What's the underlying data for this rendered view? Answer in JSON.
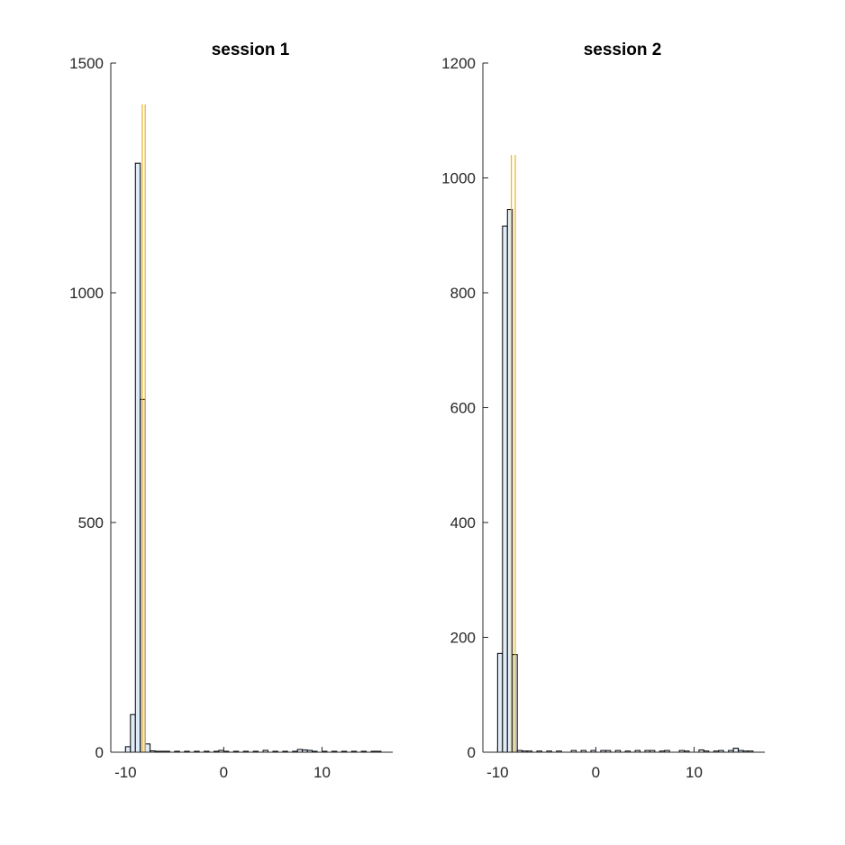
{
  "chart_data": [
    {
      "type": "bar",
      "title": "session 1",
      "xlabel": "",
      "ylabel": "",
      "xlim": [
        -11.5,
        17.2
      ],
      "ylim": [
        0,
        1500
      ],
      "xticks": [
        -10,
        0,
        10
      ],
      "xtick_labels": [
        "-10",
        "0",
        "10"
      ],
      "yticks": [
        0,
        500,
        1000,
        1500
      ],
      "ytick_labels": [
        "0",
        "500",
        "1000",
        "1500"
      ],
      "bin_width": 0.5,
      "grid": false,
      "legend": "none",
      "bar_fill": "#dfebf7",
      "bar_stroke": "#000000",
      "series": [
        {
          "values": [
            {
              "x": -10.0,
              "y": 12
            },
            {
              "x": -9.5,
              "y": 82
            },
            {
              "x": -9.0,
              "y": 1282
            },
            {
              "x": -8.5,
              "y": 768
            },
            {
              "x": -8.0,
              "y": 18
            },
            {
              "x": -7.5,
              "y": 3
            },
            {
              "x": -7.0,
              "y": 2
            },
            {
              "x": -6.5,
              "y": 2
            },
            {
              "x": -6.0,
              "y": 2
            },
            {
              "x": -5.0,
              "y": 2
            },
            {
              "x": -4.0,
              "y": 2
            },
            {
              "x": -3.0,
              "y": 2
            },
            {
              "x": -2.0,
              "y": 2
            },
            {
              "x": -1.0,
              "y": 2
            },
            {
              "x": -0.5,
              "y": 4
            },
            {
              "x": 0.0,
              "y": 2
            },
            {
              "x": 1.0,
              "y": 2
            },
            {
              "x": 2.0,
              "y": 2
            },
            {
              "x": 3.0,
              "y": 2
            },
            {
              "x": 4.0,
              "y": 4
            },
            {
              "x": 5.0,
              "y": 2
            },
            {
              "x": 6.0,
              "y": 2
            },
            {
              "x": 7.0,
              "y": 2
            },
            {
              "x": 7.5,
              "y": 6
            },
            {
              "x": 8.0,
              "y": 5
            },
            {
              "x": 8.5,
              "y": 4
            },
            {
              "x": 9.0,
              "y": 2
            },
            {
              "x": 10.0,
              "y": 2
            },
            {
              "x": 11.0,
              "y": 2
            },
            {
              "x": 12.0,
              "y": 2
            },
            {
              "x": 13.0,
              "y": 2
            },
            {
              "x": 14.0,
              "y": 2
            },
            {
              "x": 15.0,
              "y": 2
            },
            {
              "x": 15.5,
              "y": 2
            }
          ]
        }
      ],
      "reference_lines": {
        "color": "#edb120",
        "x": [
          -8.3,
          -8.0
        ],
        "y_top": 1410
      }
    },
    {
      "type": "bar",
      "title": "session 2",
      "xlabel": "",
      "ylabel": "",
      "xlim": [
        -11.5,
        17.2
      ],
      "ylim": [
        0,
        1200
      ],
      "xticks": [
        -10,
        0,
        10
      ],
      "xtick_labels": [
        "-10",
        "0",
        "10"
      ],
      "yticks": [
        0,
        200,
        400,
        600,
        800,
        1000,
        1200
      ],
      "ytick_labels": [
        "0",
        "200",
        "400",
        "600",
        "800",
        "1000",
        "1200"
      ],
      "bin_width": 0.5,
      "grid": false,
      "legend": "none",
      "bar_fill": "#dfebf7",
      "bar_stroke": "#000000",
      "series": [
        {
          "values": [
            {
              "x": -10.0,
              "y": 172
            },
            {
              "x": -9.5,
              "y": 916
            },
            {
              "x": -9.0,
              "y": 945
            },
            {
              "x": -8.5,
              "y": 170
            },
            {
              "x": -8.0,
              "y": 3
            },
            {
              "x": -7.5,
              "y": 2
            },
            {
              "x": -7.0,
              "y": 2
            },
            {
              "x": -6.0,
              "y": 2
            },
            {
              "x": -5.0,
              "y": 2
            },
            {
              "x": -4.0,
              "y": 2
            },
            {
              "x": -2.5,
              "y": 3
            },
            {
              "x": -1.5,
              "y": 3
            },
            {
              "x": -0.5,
              "y": 3
            },
            {
              "x": 0.5,
              "y": 3
            },
            {
              "x": 1.0,
              "y": 3
            },
            {
              "x": 2.0,
              "y": 3
            },
            {
              "x": 3.0,
              "y": 2
            },
            {
              "x": 4.0,
              "y": 3
            },
            {
              "x": 5.0,
              "y": 3
            },
            {
              "x": 5.5,
              "y": 3
            },
            {
              "x": 6.5,
              "y": 2
            },
            {
              "x": 7.0,
              "y": 3
            },
            {
              "x": 8.5,
              "y": 3
            },
            {
              "x": 9.0,
              "y": 2
            },
            {
              "x": 10.5,
              "y": 4
            },
            {
              "x": 11.0,
              "y": 2
            },
            {
              "x": 12.0,
              "y": 2
            },
            {
              "x": 12.5,
              "y": 3
            },
            {
              "x": 13.5,
              "y": 3
            },
            {
              "x": 14.0,
              "y": 7
            },
            {
              "x": 14.5,
              "y": 3
            },
            {
              "x": 15.0,
              "y": 2
            },
            {
              "x": 15.5,
              "y": 2
            }
          ]
        }
      ],
      "reference_lines": {
        "color": "#edb120",
        "x": [
          -8.6,
          -8.2
        ],
        "y_top": 1040
      }
    }
  ]
}
